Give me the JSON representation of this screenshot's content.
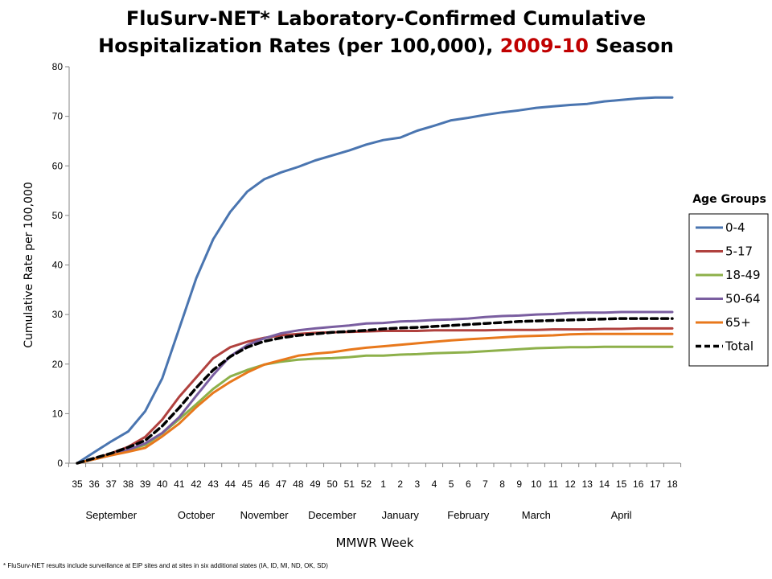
{
  "title": {
    "line1": "FluSurv-NET* Laboratory-Confirmed Cumulative",
    "line2_prefix": "Hospitalization Rates (per 100,000), ",
    "line2_accent": "2009-10",
    "line2_suffix": " Season"
  },
  "footnote": "* FluSurv-NET results include surveillance at EIP sites and at sites in six additional states (IA, ID, MI, ND, OK, SD)",
  "colors": {
    "accent": "#c00000",
    "0-4": "#4a75b0",
    "5-17": "#b0413e",
    "18-49": "#8db04a",
    "50-64": "#7a5ea0",
    "65+": "#e8781c",
    "Total": "#000000"
  },
  "chart_data": {
    "type": "line",
    "xlabel": "MMWR Week",
    "ylabel": "Cumulative Rate per 100,000",
    "ylim": [
      0,
      80
    ],
    "yticks": [
      0,
      10,
      20,
      30,
      40,
      50,
      60,
      70,
      80
    ],
    "grid": false,
    "legend_title": "Age Groups",
    "legend_position": "right",
    "x": [
      "35",
      "36",
      "37",
      "38",
      "39",
      "40",
      "41",
      "42",
      "43",
      "44",
      "45",
      "46",
      "47",
      "48",
      "49",
      "50",
      "51",
      "52",
      "1",
      "2",
      "3",
      "4",
      "5",
      "6",
      "7",
      "8",
      "9",
      "10",
      "11",
      "12",
      "13",
      "14",
      "15",
      "16",
      "17",
      "18"
    ],
    "months": [
      {
        "label": "September",
        "week": "37"
      },
      {
        "label": "October",
        "week": "42"
      },
      {
        "label": "November",
        "week": "46"
      },
      {
        "label": "December",
        "week": "50"
      },
      {
        "label": "January",
        "week": "2"
      },
      {
        "label": "February",
        "week": "6"
      },
      {
        "label": "March",
        "week": "10"
      },
      {
        "label": "April",
        "week": "15"
      }
    ],
    "series": [
      {
        "name": "0-4",
        "values": [
          0,
          2.2,
          4.4,
          6.4,
          10.5,
          17.1,
          27.2,
          37.3,
          45.2,
          50.7,
          54.8,
          57.3,
          58.7,
          59.8,
          61.1,
          62.1,
          63.1,
          64.3,
          65.2,
          65.7,
          67.1,
          68.1,
          69.2,
          69.7,
          70.3,
          70.8,
          71.2,
          71.7,
          72.0,
          72.3,
          72.5,
          73.0,
          73.3,
          73.6,
          73.8,
          73.8
        ],
        "dash": false
      },
      {
        "name": "5-17",
        "values": [
          0,
          0.9,
          2.0,
          3.3,
          5.3,
          8.8,
          13.4,
          17.3,
          21.2,
          23.4,
          24.5,
          25.3,
          25.8,
          26.1,
          26.3,
          26.4,
          26.5,
          26.6,
          26.7,
          26.7,
          26.7,
          26.8,
          26.8,
          26.8,
          26.8,
          26.9,
          26.9,
          26.9,
          27.0,
          27.0,
          27.0,
          27.1,
          27.1,
          27.2,
          27.2,
          27.2
        ],
        "dash": false
      },
      {
        "name": "18-49",
        "values": [
          0,
          0.8,
          1.7,
          2.6,
          3.7,
          6.0,
          8.9,
          11.9,
          15.0,
          17.5,
          18.8,
          19.9,
          20.5,
          20.9,
          21.1,
          21.2,
          21.4,
          21.7,
          21.7,
          21.9,
          22.0,
          22.2,
          22.3,
          22.4,
          22.6,
          22.8,
          23.0,
          23.2,
          23.3,
          23.4,
          23.4,
          23.5,
          23.5,
          23.5,
          23.5,
          23.5
        ],
        "dash": false
      },
      {
        "name": "50-64",
        "values": [
          0,
          0.8,
          1.6,
          2.7,
          4.0,
          6.1,
          9.3,
          13.6,
          17.8,
          21.6,
          23.8,
          25.2,
          26.2,
          26.8,
          27.2,
          27.5,
          27.8,
          28.2,
          28.3,
          28.6,
          28.7,
          28.9,
          29.0,
          29.2,
          29.5,
          29.7,
          29.8,
          30.0,
          30.1,
          30.3,
          30.4,
          30.4,
          30.5,
          30.5,
          30.5,
          30.5
        ],
        "dash": false
      },
      {
        "name": "65+",
        "values": [
          0,
          0.8,
          1.6,
          2.3,
          3.1,
          5.4,
          8.0,
          11.3,
          14.2,
          16.4,
          18.3,
          19.9,
          20.8,
          21.7,
          22.1,
          22.4,
          22.9,
          23.3,
          23.6,
          23.9,
          24.2,
          24.5,
          24.8,
          25.0,
          25.2,
          25.4,
          25.6,
          25.7,
          25.8,
          26.0,
          26.1,
          26.1,
          26.1,
          26.1,
          26.1,
          26.1
        ],
        "dash": false
      },
      {
        "name": "Total",
        "values": [
          0,
          1.0,
          2.0,
          3.2,
          4.6,
          7.5,
          11.2,
          15.2,
          18.8,
          21.5,
          23.4,
          24.6,
          25.3,
          25.8,
          26.1,
          26.4,
          26.6,
          26.8,
          27.1,
          27.3,
          27.4,
          27.6,
          27.8,
          28.0,
          28.2,
          28.4,
          28.6,
          28.7,
          28.8,
          28.9,
          29.0,
          29.1,
          29.2,
          29.2,
          29.2,
          29.2
        ],
        "dash": true
      }
    ]
  }
}
